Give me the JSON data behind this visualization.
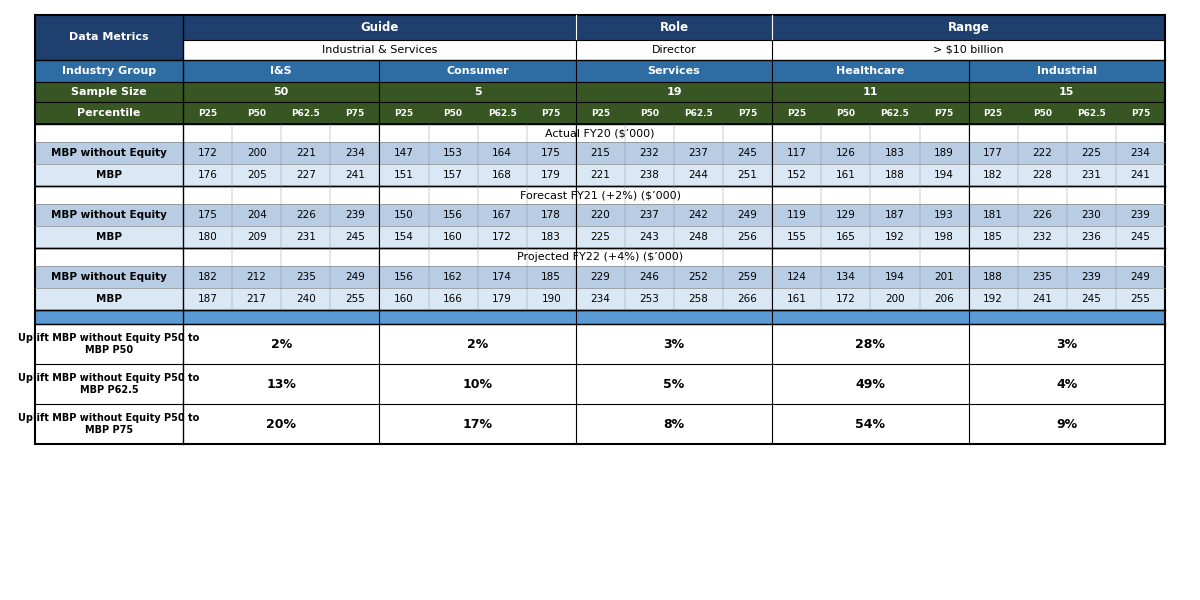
{
  "section1_header": "Actual FY20 ($’000)",
  "section2_header": "Forecast FY21 (+2%) ($’000)",
  "section3_header": "Projected FY22 (+4%) ($’000)",
  "section1_rows": [
    [
      "MBP without Equity",
      "172",
      "200",
      "221",
      "234",
      "147",
      "153",
      "164",
      "175",
      "215",
      "232",
      "237",
      "245",
      "117",
      "126",
      "183",
      "189",
      "177",
      "222",
      "225",
      "234"
    ],
    [
      "MBP",
      "176",
      "205",
      "227",
      "241",
      "151",
      "157",
      "168",
      "179",
      "221",
      "238",
      "244",
      "251",
      "152",
      "161",
      "188",
      "194",
      "182",
      "228",
      "231",
      "241"
    ]
  ],
  "section2_rows": [
    [
      "MBP without Equity",
      "175",
      "204",
      "226",
      "239",
      "150",
      "156",
      "167",
      "178",
      "220",
      "237",
      "242",
      "249",
      "119",
      "129",
      "187",
      "193",
      "181",
      "226",
      "230",
      "239"
    ],
    [
      "MBP",
      "180",
      "209",
      "231",
      "245",
      "154",
      "160",
      "172",
      "183",
      "225",
      "243",
      "248",
      "256",
      "155",
      "165",
      "192",
      "198",
      "185",
      "232",
      "236",
      "245"
    ]
  ],
  "section3_rows": [
    [
      "MBP without Equity",
      "182",
      "212",
      "235",
      "249",
      "156",
      "162",
      "174",
      "185",
      "229",
      "246",
      "252",
      "259",
      "124",
      "134",
      "194",
      "201",
      "188",
      "235",
      "239",
      "249"
    ],
    [
      "MBP",
      "187",
      "217",
      "240",
      "255",
      "160",
      "166",
      "179",
      "190",
      "234",
      "253",
      "258",
      "266",
      "161",
      "172",
      "200",
      "206",
      "192",
      "241",
      "245",
      "255"
    ]
  ],
  "uplift_rows": [
    [
      "Uplift MBP without Equity P50 to\nMBP P50",
      "2%",
      "2%",
      "3%",
      "28%",
      "3%"
    ],
    [
      "Uplift MBP without Equity P50 to\nMBP P62.5",
      "13%",
      "10%",
      "5%",
      "49%",
      "4%"
    ],
    [
      "Uplift MBP without Equity P50 to\nMBP P75",
      "20%",
      "17%",
      "8%",
      "54%",
      "9%"
    ]
  ],
  "navy": "#1F3F6E",
  "mid_blue": "#2E6CA4",
  "dark_green": "#375623",
  "light_blue1": "#B8CCE4",
  "light_blue2": "#DAE8F5",
  "gap_blue": "#6FA8DC",
  "white": "#FFFFFF",
  "black": "#000000"
}
